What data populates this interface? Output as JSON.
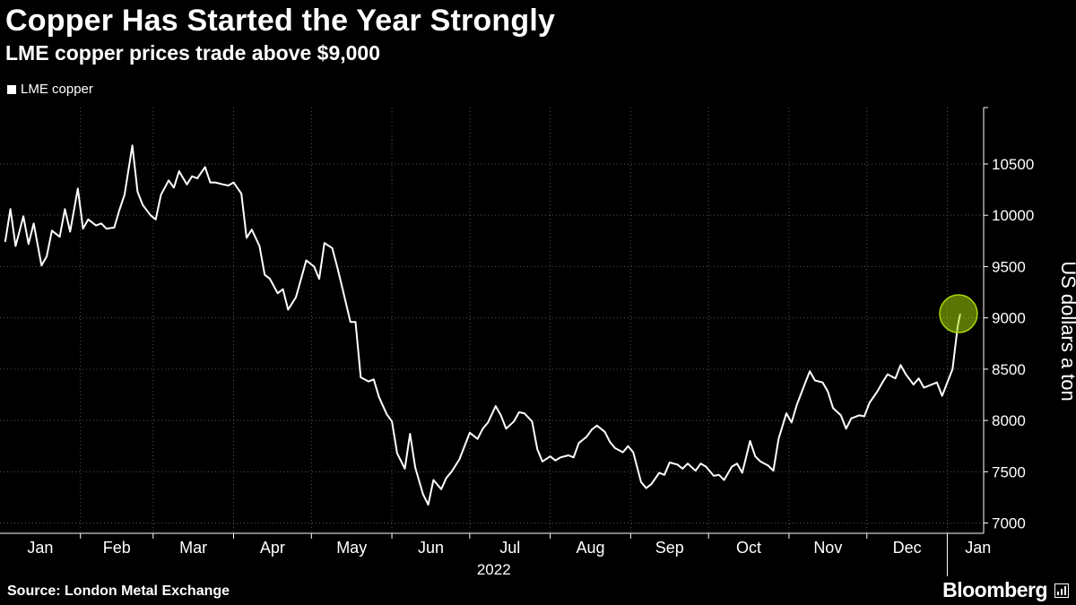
{
  "header": {
    "title": "Copper Has Started the Year Strongly",
    "subtitle": "LME copper prices trade above $9,000"
  },
  "footer": {
    "source": "Source: London Metal Exchange",
    "brand": "Bloomberg"
  },
  "colors": {
    "background": "#000000",
    "line": "#ffffff",
    "highlight": "#a6d608"
  },
  "chart_data": {
    "type": "line",
    "title": "Copper Has Started the Year Strongly",
    "subtitle": "LME copper prices trade above $9,000",
    "ylabel": "US dollars a ton",
    "xlabel": "",
    "year_label": "2022",
    "ylim": [
      6900,
      11050
    ],
    "yticks": [
      7000,
      7500,
      8000,
      8500,
      9000,
      9500,
      10000,
      10500
    ],
    "x_tick_labels": [
      "Jan",
      "Feb",
      "Mar",
      "Apr",
      "May",
      "Jun",
      "Jul",
      "Aug",
      "Sep",
      "Oct",
      "Nov",
      "Dec",
      "Jan"
    ],
    "grid": true,
    "legend_position": "top-left",
    "series": [
      {
        "name": "LME copper",
        "x": [
          "2022-01-03",
          "2022-01-05",
          "2022-01-07",
          "2022-01-10",
          "2022-01-12",
          "2022-01-14",
          "2022-01-17",
          "2022-01-19",
          "2022-01-21",
          "2022-01-24",
          "2022-01-26",
          "2022-01-28",
          "2022-01-31",
          "2022-02-02",
          "2022-02-04",
          "2022-02-07",
          "2022-02-09",
          "2022-02-11",
          "2022-02-14",
          "2022-02-16",
          "2022-02-18",
          "2022-02-21",
          "2022-02-23",
          "2022-02-25",
          "2022-02-28",
          "2022-03-02",
          "2022-03-04",
          "2022-03-07",
          "2022-03-09",
          "2022-03-11",
          "2022-03-14",
          "2022-03-16",
          "2022-03-18",
          "2022-03-21",
          "2022-03-23",
          "2022-03-25",
          "2022-03-28",
          "2022-03-30",
          "2022-04-01",
          "2022-04-04",
          "2022-04-06",
          "2022-04-08",
          "2022-04-11",
          "2022-04-13",
          "2022-04-15",
          "2022-04-18",
          "2022-04-20",
          "2022-04-22",
          "2022-04-25",
          "2022-04-27",
          "2022-04-29",
          "2022-05-02",
          "2022-05-04",
          "2022-05-06",
          "2022-05-09",
          "2022-05-11",
          "2022-05-13",
          "2022-05-16",
          "2022-05-18",
          "2022-05-20",
          "2022-05-23",
          "2022-05-25",
          "2022-05-27",
          "2022-05-30",
          "2022-06-01",
          "2022-06-03",
          "2022-06-06",
          "2022-06-08",
          "2022-06-10",
          "2022-06-13",
          "2022-06-15",
          "2022-06-17",
          "2022-06-20",
          "2022-06-22",
          "2022-06-24",
          "2022-06-27",
          "2022-06-29",
          "2022-07-01",
          "2022-07-04",
          "2022-07-06",
          "2022-07-08",
          "2022-07-11",
          "2022-07-13",
          "2022-07-15",
          "2022-07-18",
          "2022-07-20",
          "2022-07-22",
          "2022-07-25",
          "2022-07-27",
          "2022-07-29",
          "2022-08-01",
          "2022-08-03",
          "2022-08-05",
          "2022-08-08",
          "2022-08-10",
          "2022-08-12",
          "2022-08-15",
          "2022-08-17",
          "2022-08-19",
          "2022-08-22",
          "2022-08-24",
          "2022-08-26",
          "2022-08-29",
          "2022-08-31",
          "2022-09-02",
          "2022-09-05",
          "2022-09-07",
          "2022-09-09",
          "2022-09-12",
          "2022-09-14",
          "2022-09-16",
          "2022-09-19",
          "2022-09-21",
          "2022-09-23",
          "2022-09-26",
          "2022-09-28",
          "2022-09-30",
          "2022-10-03",
          "2022-10-05",
          "2022-10-07",
          "2022-10-10",
          "2022-10-12",
          "2022-10-14",
          "2022-10-17",
          "2022-10-19",
          "2022-10-21",
          "2022-10-24",
          "2022-10-26",
          "2022-10-28",
          "2022-10-31",
          "2022-11-02",
          "2022-11-04",
          "2022-11-07",
          "2022-11-09",
          "2022-11-11",
          "2022-11-14",
          "2022-11-16",
          "2022-11-18",
          "2022-11-21",
          "2022-11-23",
          "2022-11-25",
          "2022-11-28",
          "2022-11-30",
          "2022-12-02",
          "2022-12-05",
          "2022-12-07",
          "2022-12-09",
          "2022-12-12",
          "2022-12-14",
          "2022-12-16",
          "2022-12-19",
          "2022-12-21",
          "2022-12-23",
          "2022-12-28",
          "2022-12-30",
          "2023-01-03",
          "2023-01-05",
          "2023-01-06"
        ],
        "values": [
          9740,
          10060,
          9700,
          9990,
          9720,
          9920,
          9510,
          9600,
          9850,
          9790,
          10060,
          9840,
          10260,
          9870,
          9960,
          9900,
          9920,
          9870,
          9880,
          10050,
          10200,
          10680,
          10230,
          10100,
          10000,
          9960,
          10200,
          10340,
          10270,
          10430,
          10300,
          10380,
          10360,
          10470,
          10320,
          10320,
          10300,
          10290,
          10320,
          10210,
          9780,
          9860,
          9700,
          9420,
          9380,
          9240,
          9280,
          9080,
          9200,
          9380,
          9560,
          9500,
          9380,
          9730,
          9680,
          9490,
          9280,
          8960,
          8960,
          8420,
          8380,
          8400,
          8230,
          8060,
          7990,
          7680,
          7530,
          7870,
          7540,
          7280,
          7180,
          7420,
          7330,
          7440,
          7500,
          7620,
          7750,
          7880,
          7820,
          7920,
          7980,
          8140,
          8050,
          7920,
          7990,
          8080,
          8070,
          7990,
          7720,
          7600,
          7650,
          7610,
          7640,
          7660,
          7640,
          7780,
          7840,
          7910,
          7950,
          7890,
          7790,
          7730,
          7690,
          7750,
          7690,
          7400,
          7340,
          7380,
          7490,
          7470,
          7590,
          7570,
          7530,
          7580,
          7510,
          7580,
          7550,
          7460,
          7470,
          7420,
          7550,
          7580,
          7490,
          7800,
          7650,
          7600,
          7560,
          7510,
          7820,
          8070,
          7980,
          8150,
          8350,
          8480,
          8390,
          8370,
          8280,
          8120,
          8050,
          7920,
          8020,
          8050,
          8040,
          8170,
          8280,
          8370,
          8450,
          8410,
          8540,
          8450,
          8350,
          8410,
          8320,
          8370,
          8240,
          8500,
          8920,
          9040
        ]
      }
    ],
    "annotations": [
      {
        "type": "highlight-circle",
        "x": "2023-01-06",
        "y": 9040
      }
    ]
  }
}
